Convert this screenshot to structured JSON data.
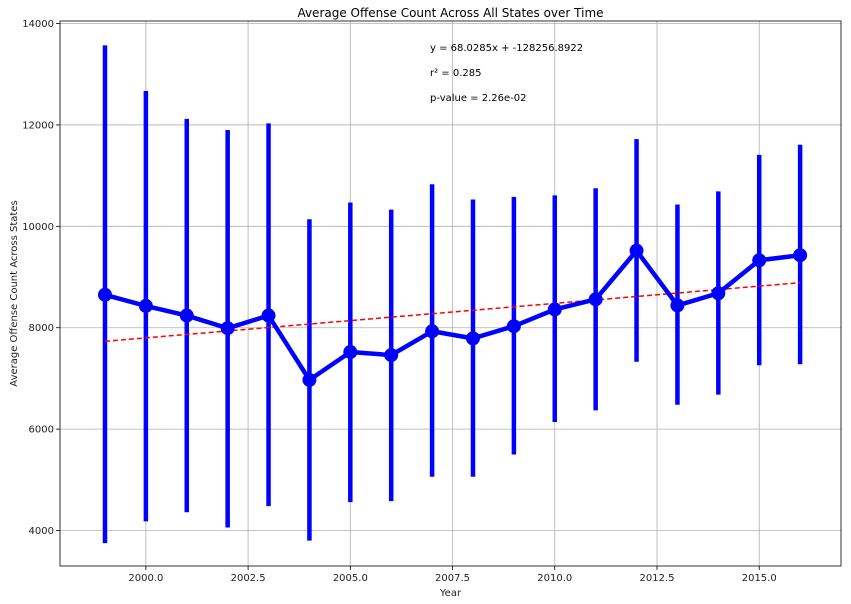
{
  "chart_data": {
    "type": "line",
    "title": "Average Offense Count Across All States over Time",
    "xlabel": "Year",
    "ylabel": "Average Offense Count Across States",
    "xlim": [
      1997.9,
      2017.0
    ],
    "ylim": [
      3300,
      14050
    ],
    "xticks": [
      2000,
      2002.5,
      2005,
      2007.5,
      2010,
      2012.5,
      2015
    ],
    "xtick_labels": [
      "2000.0",
      "2002.5",
      "2005.0",
      "2007.5",
      "2010.0",
      "2012.5",
      "2015.0"
    ],
    "yticks": [
      4000,
      6000,
      8000,
      10000,
      12000,
      14000
    ],
    "ytick_labels": [
      "4000",
      "6000",
      "8000",
      "10000",
      "12000",
      "14000"
    ],
    "grid": true,
    "x": [
      1999,
      2000,
      2001,
      2002,
      2003,
      2004,
      2005,
      2006,
      2007,
      2008,
      2009,
      2010,
      2011,
      2012,
      2013,
      2014,
      2015,
      2016
    ],
    "series": [
      {
        "values": [
          8650,
          8430,
          8240,
          7990,
          8240,
          6970,
          7520,
          7460,
          7930,
          7790,
          8030,
          8360,
          8560,
          9520,
          8440,
          8680,
          9330,
          9430
        ],
        "error_low": [
          3750,
          4180,
          4360,
          4060,
          4480,
          3800,
          4560,
          4580,
          5060,
          5060,
          5500,
          6140,
          6370,
          7330,
          6480,
          6680,
          7260,
          7280
        ],
        "error_high": [
          13570,
          12670,
          12120,
          11900,
          12030,
          10140,
          10470,
          10330,
          10830,
          10530,
          10580,
          10610,
          10750,
          11720,
          10430,
          10690,
          11410,
          11610
        ],
        "color": "#0000ff"
      }
    ],
    "trendline": {
      "slope": 68.0285,
      "intercept": -128256.8922,
      "x_range": [
        1999,
        2016
      ],
      "color": "#ff0000",
      "style": "dashed"
    },
    "annotations": [
      "y = 68.0285x + -128256.8922",
      "r² = 0.285",
      "p-value = 2.26e-02"
    ]
  }
}
